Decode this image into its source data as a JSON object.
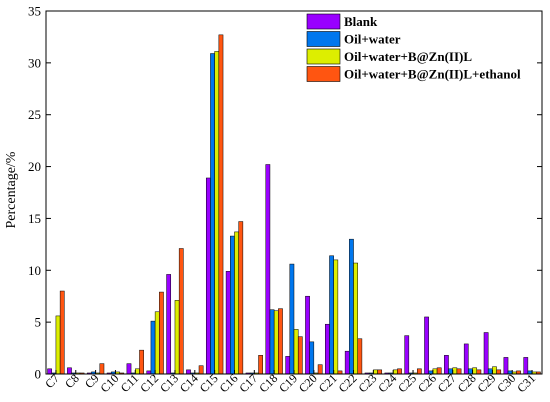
{
  "chart_data": {
    "type": "bar",
    "title": "",
    "xlabel": "",
    "ylabel": "Percentage/%",
    "ylim": [
      0,
      35
    ],
    "yticks": [
      0,
      5,
      10,
      15,
      20,
      25,
      30,
      35
    ],
    "legend_position": "top-right",
    "grid": false,
    "categories": [
      "C7",
      "C8",
      "C9",
      "C10",
      "C11",
      "C12",
      "C13",
      "C14",
      "C15",
      "C16",
      "C17",
      "C18",
      "C19",
      "C20",
      "C21",
      "C22",
      "C23",
      "C24",
      "C25",
      "C26",
      "C27",
      "C28",
      "C29",
      "C30",
      "C31"
    ],
    "series": [
      {
        "name": "Blank",
        "color": "#9900ff",
        "values": [
          0.5,
          0.6,
          0.1,
          0.1,
          1.0,
          0.3,
          9.6,
          0.4,
          18.9,
          9.9,
          0.1,
          20.2,
          1.7,
          7.5,
          4.8,
          2.2,
          0.1,
          0.1,
          3.7,
          5.5,
          1.8,
          2.9,
          4.0,
          1.6,
          1.6
        ]
      },
      {
        "name": "Oil+water",
        "color": "#0077ee",
        "values": [
          0.1,
          0.1,
          0.2,
          0.2,
          0.1,
          5.1,
          0.1,
          0.1,
          30.9,
          13.3,
          0.1,
          6.2,
          10.6,
          3.1,
          11.4,
          13.0,
          0.1,
          0.1,
          0.1,
          0.3,
          0.5,
          0.5,
          0.5,
          0.3,
          0.3
        ]
      },
      {
        "name": "Oil+water+B@Zn(II)L",
        "color": "#ddee00",
        "values": [
          5.6,
          0.1,
          0.1,
          0.2,
          0.5,
          6.0,
          7.1,
          0.1,
          31.1,
          13.7,
          0.1,
          6.1,
          4.3,
          0.1,
          11.0,
          10.7,
          0.4,
          0.4,
          0.1,
          0.5,
          0.6,
          0.6,
          0.7,
          0.2,
          0.2
        ]
      },
      {
        "name": "Oil+water+B@Zn(II)L+ethanol",
        "color": "#ff5511",
        "values": [
          8.0,
          0.1,
          1.0,
          0.1,
          2.3,
          7.9,
          12.1,
          0.8,
          32.7,
          14.7,
          1.8,
          6.3,
          3.6,
          0.9,
          0.3,
          3.4,
          0.4,
          0.5,
          0.5,
          0.6,
          0.5,
          0.4,
          0.4,
          0.3,
          0.2
        ]
      }
    ]
  }
}
